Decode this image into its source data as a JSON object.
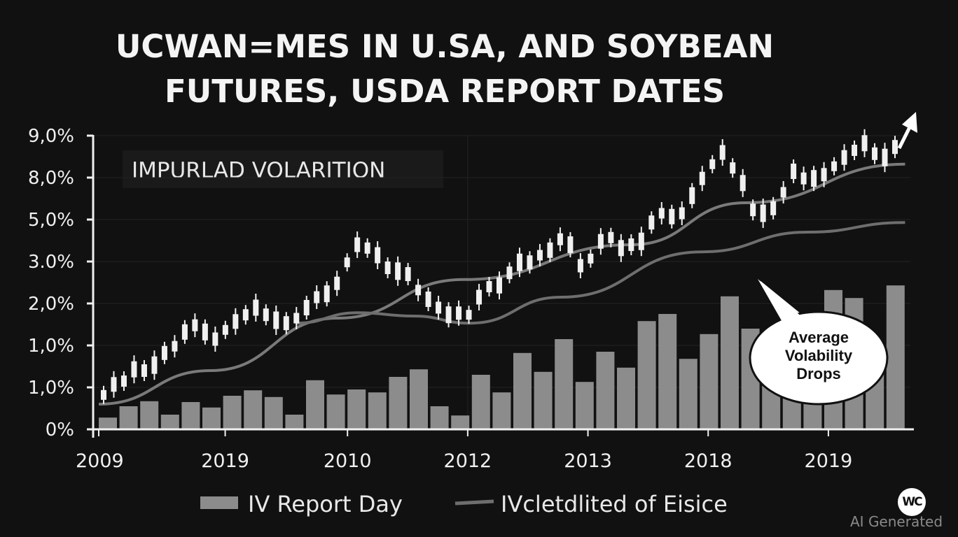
{
  "title": {
    "line1": "UCWAN=MES IN U.SA, AND SOYBEAN",
    "line2": "FUTURES, USDA REPORT DATES"
  },
  "watermark": {
    "text": "AI Generated",
    "logo_text": "WC"
  },
  "chart_data": {
    "type": "bar+line+candlestick",
    "title": "UCWAN=MES IN U.SA, AND SOYBEAN FUTURES, USDA REPORT DATES",
    "inset_label": "IMPURLAD VOLARITION",
    "annotation": "Average Volability Drops",
    "value_units": "axis level (0 = first tick, 7 = top tick)",
    "y_ticks": [
      {
        "level": 0,
        "label": "0%"
      },
      {
        "level": 1,
        "label": "1,0%"
      },
      {
        "level": 2,
        "label": "1,0%"
      },
      {
        "level": 3,
        "label": "2,0%"
      },
      {
        "level": 4,
        "label": "3.0%"
      },
      {
        "level": 5,
        "label": "5,0%"
      },
      {
        "level": 6,
        "label": "8,0%"
      },
      {
        "level": 7,
        "label": "9,0%"
      }
    ],
    "ylim": [
      0,
      7
    ],
    "xlim": [
      0,
      39
    ],
    "x_ticks": [
      {
        "pos": 0,
        "label": "2009"
      },
      {
        "pos": 6.1,
        "label": "2019"
      },
      {
        "pos": 12,
        "label": "2010"
      },
      {
        "pos": 17.8,
        "label": "2012"
      },
      {
        "pos": 23.6,
        "label": "2013"
      },
      {
        "pos": 29.4,
        "label": "2018"
      },
      {
        "pos": 35.2,
        "label": "2019"
      }
    ],
    "legend": {
      "placement": "bottom",
      "entries": [
        {
          "label": "IV Report Day",
          "kind": "bar",
          "color": "#8c8c8c"
        },
        {
          "label": "IVcletdlited of Eisice",
          "kind": "line",
          "color": "#6e6e6e"
        }
      ]
    },
    "bars": {
      "name": "IV Report Day",
      "color": "#8c8c8c",
      "values": [
        0.28,
        0.55,
        0.67,
        0.35,
        0.65,
        0.52,
        0.8,
        0.93,
        0.77,
        0.35,
        1.17,
        0.83,
        0.95,
        0.88,
        1.25,
        1.43,
        0.55,
        0.33,
        1.3,
        0.88,
        1.82,
        1.37,
        2.15,
        1.13,
        1.85,
        1.47,
        2.58,
        2.75,
        1.68,
        2.27,
        3.17,
        2.4,
        1.4,
        0.9,
        0.65,
        3.32,
        3.13,
        1.5,
        3.43
      ]
    },
    "lines": [
      {
        "name": "upper trend",
        "color": "#7a7a7a",
        "points": [
          [
            0,
            0.6
          ],
          [
            5.4,
            1.4
          ],
          [
            11.5,
            2.65
          ],
          [
            17.6,
            3.57
          ],
          [
            25.7,
            4.4
          ],
          [
            31.2,
            5.4
          ],
          [
            38.9,
            6.32
          ]
        ]
      },
      {
        "name": "IVcletdlited of Eisice",
        "color": "#6e6e6e",
        "points": [
          [
            9.5,
            2.53
          ],
          [
            12.5,
            2.78
          ],
          [
            15.2,
            2.7
          ],
          [
            17.9,
            2.53
          ],
          [
            22.3,
            3.15
          ],
          [
            29.1,
            4.23
          ],
          [
            34.2,
            4.7
          ],
          [
            38.9,
            4.93
          ]
        ]
      }
    ],
    "candles_mid": [
      0.82,
      1.07,
      1.15,
      1.43,
      1.4,
      1.53,
      1.82,
      1.98,
      2.32,
      2.48,
      2.32,
      2.15,
      2.37,
      2.57,
      2.73,
      2.9,
      2.73,
      2.6,
      2.53,
      2.65,
      2.9,
      3.15,
      3.23,
      3.48,
      3.98,
      4.4,
      4.32,
      4.15,
      3.85,
      3.77,
      3.7,
      3.32,
      3.1,
      2.9,
      2.73,
      2.77,
      2.73,
      3.15,
      3.4,
      3.43,
      3.73,
      3.98,
      3.98,
      4.15,
      4.27,
      4.53,
      4.4,
      3.9,
      4.07,
      4.48,
      4.57,
      4.32,
      4.4,
      4.48,
      4.93,
      5.15,
      5.07,
      5.15,
      5.57,
      5.98,
      6.32,
      6.6,
      6.23,
      5.87,
      5.23,
      5.15,
      5.27,
      5.65,
      6.15,
      5.98,
      5.98,
      6.07,
      6.27,
      6.48,
      6.65,
      6.82,
      6.57,
      6.48,
      6.73
    ],
    "colors": {
      "background": "#111111",
      "bars": "#8c8c8c",
      "candles": "#f0f0f0",
      "axis": "#f0f0f0"
    }
  }
}
